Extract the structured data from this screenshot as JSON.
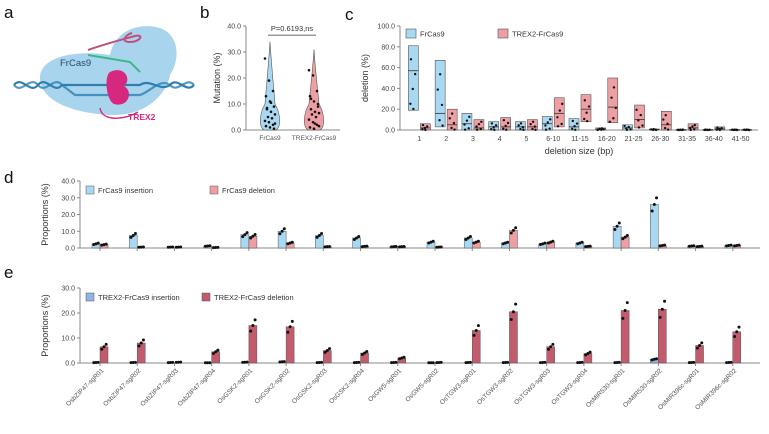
{
  "panels": {
    "a": {
      "label": "a",
      "diagram": {
        "protein": "FrCas9",
        "exonuclease": "TREX2"
      },
      "colors": {
        "cas9_body": "#a8d4ee",
        "dna": "#2e7fb0",
        "trex2": "#d6287f",
        "guide": "#c0507a",
        "spacer": "#3bb88a"
      }
    },
    "b": {
      "label": "b"
    },
    "c": {
      "label": "c"
    },
    "d": {
      "label": "d"
    },
    "e": {
      "label": "e"
    }
  },
  "colors": {
    "frcas9": "#a9d8f2",
    "trex2_frcas9_light": "#ee9fa3",
    "trex2_frcas9_dark": "#c25b6c",
    "trex2_insertion": "#8fb4e6",
    "axis": "#888888",
    "dot": "#111111"
  },
  "chart_data": [
    {
      "id": "b",
      "type": "violin",
      "ylabel": "Mutation (%)",
      "ylim": [
        0,
        40
      ],
      "yticks": [
        "0.0",
        "10.0",
        "20.0",
        "30.0",
        "40.0"
      ],
      "categories": [
        "FrCas9",
        "TREX2-FrCas9"
      ],
      "annotation": "P=0.6193,ns",
      "series": [
        {
          "name": "FrCas9",
          "max": 34,
          "points": [
            27.5,
            19,
            15,
            13,
            11,
            9,
            8,
            7,
            6,
            5,
            4.5,
            3.5,
            3,
            2,
            1.5,
            1,
            0.5,
            8.5,
            10.5,
            2.5
          ]
        },
        {
          "name": "TREX2-FrCas9",
          "max": 31,
          "points": [
            23,
            21,
            15,
            13,
            11,
            10,
            8,
            7,
            6.5,
            6,
            5,
            4,
            3,
            2,
            1,
            0.5,
            9,
            12,
            2.5,
            1.5
          ]
        }
      ]
    },
    {
      "id": "c",
      "type": "floating-bar",
      "xlabel": "deletion size (bp)",
      "ylabel": "deletion (%)",
      "ylim": [
        0,
        100
      ],
      "yticks": [
        "0.0",
        "20.0",
        "40.0",
        "60.0",
        "80.0",
        "100.0"
      ],
      "categories": [
        "1",
        "2",
        "3",
        "4",
        "5",
        "6-10",
        "11-15",
        "16-20",
        "21-25",
        "26-30",
        "31-35",
        "36-40",
        "41-50"
      ],
      "legend": [
        "FrCas9",
        "TREX2-FrCas9"
      ],
      "legend_position": "top",
      "series": [
        {
          "name": "FrCas9",
          "min": [
            19,
            3,
            0,
            0,
            0,
            0,
            0,
            0,
            0,
            0,
            0,
            0,
            0
          ],
          "max": [
            81,
            67,
            16,
            8,
            8,
            13,
            11,
            2,
            5,
            1,
            0.5,
            0.5,
            0.5
          ],
          "mean": [
            57,
            16,
            6,
            3,
            3,
            6,
            3,
            1,
            2,
            0.5,
            0.2,
            0.2,
            0.2
          ]
        },
        {
          "name": "TREX2-FrCas9",
          "min": [
            0,
            0,
            0,
            0,
            0,
            3,
            8,
            7,
            2,
            0,
            0,
            0,
            0
          ],
          "max": [
            6,
            20,
            10,
            12,
            10,
            31,
            34,
            50,
            24,
            18,
            6,
            3,
            0.5
          ],
          "mean": [
            2,
            5,
            2,
            3,
            3,
            16,
            20,
            22,
            10,
            5,
            2,
            1,
            0.2
          ]
        }
      ]
    },
    {
      "id": "d",
      "type": "bar",
      "ylabel": "Proportions (%)",
      "ylim": [
        0,
        40
      ],
      "yticks": [
        "0.0",
        "10.0",
        "20.0",
        "30.0",
        "40.0"
      ],
      "legend": [
        "FrCas9 insertion",
        "FrCas9 deletion"
      ],
      "legend_position": "top-left",
      "series": [
        {
          "name": "FrCas9 insertion",
          "values": [
            2.5,
            7.5,
            0.5,
            1.2,
            8,
            10,
            7.5,
            6,
            0.8,
            3.5,
            6,
            3,
            2.5,
            3,
            13,
            26,
            1.2,
            1.5
          ]
        },
        {
          "name": "FrCas9 deletion",
          "values": [
            2,
            0.5,
            0.5,
            0.3,
            7,
            3,
            0.8,
            1,
            0.8,
            0.5,
            3.5,
            10.5,
            3.5,
            1,
            6.5,
            1.5,
            1,
            1.5
          ]
        }
      ]
    },
    {
      "id": "e",
      "type": "bar",
      "ylabel": "Proportions (%)",
      "ylim": [
        0,
        30
      ],
      "yticks": [
        "0.0",
        "10.0",
        "20.0",
        "30.0"
      ],
      "legend": [
        "TREX2-FrCas9 insertion",
        "TREX2-FrCas9 deletion"
      ],
      "legend_position": "top-left",
      "categories": [
        "OsbZIP47-sgR01",
        "OsbZIP47-sgR02",
        "OsbZIP47-sgR03",
        "OsbZIP47-sgR04",
        "OsGSK2-sgR01",
        "OsGSK2-sgR02",
        "OsGSK2-sgR03",
        "OsGSK2-sgR04",
        "OsGW5-sgR01",
        "OsGW5-sgR02",
        "OsTGW3-sgR01",
        "OsTGW3-sgR02",
        "OsTGW3-sgR03",
        "OsTGW3-sgR04",
        "OsMIR530-sgR01",
        "OsMIR530-sgR02",
        "OsMIR396c-sgR01",
        "OsMIR396c-sgR02"
      ],
      "series": [
        {
          "name": "TREX2-FrCas9 insertion",
          "values": [
            0.2,
            0.2,
            0.2,
            0.1,
            0.3,
            0.5,
            0.2,
            0.2,
            0.2,
            0.1,
            0.2,
            0.2,
            0.2,
            0.2,
            0.2,
            1.5,
            0.2,
            0.2
          ]
        },
        {
          "name": "TREX2-FrCas9 deletion",
          "values": [
            6.5,
            8,
            0.3,
            4.5,
            15,
            14.5,
            5,
            4,
            2,
            0.2,
            13,
            20.5,
            6.5,
            3.8,
            21,
            21.5,
            7,
            12.5
          ]
        }
      ]
    }
  ]
}
